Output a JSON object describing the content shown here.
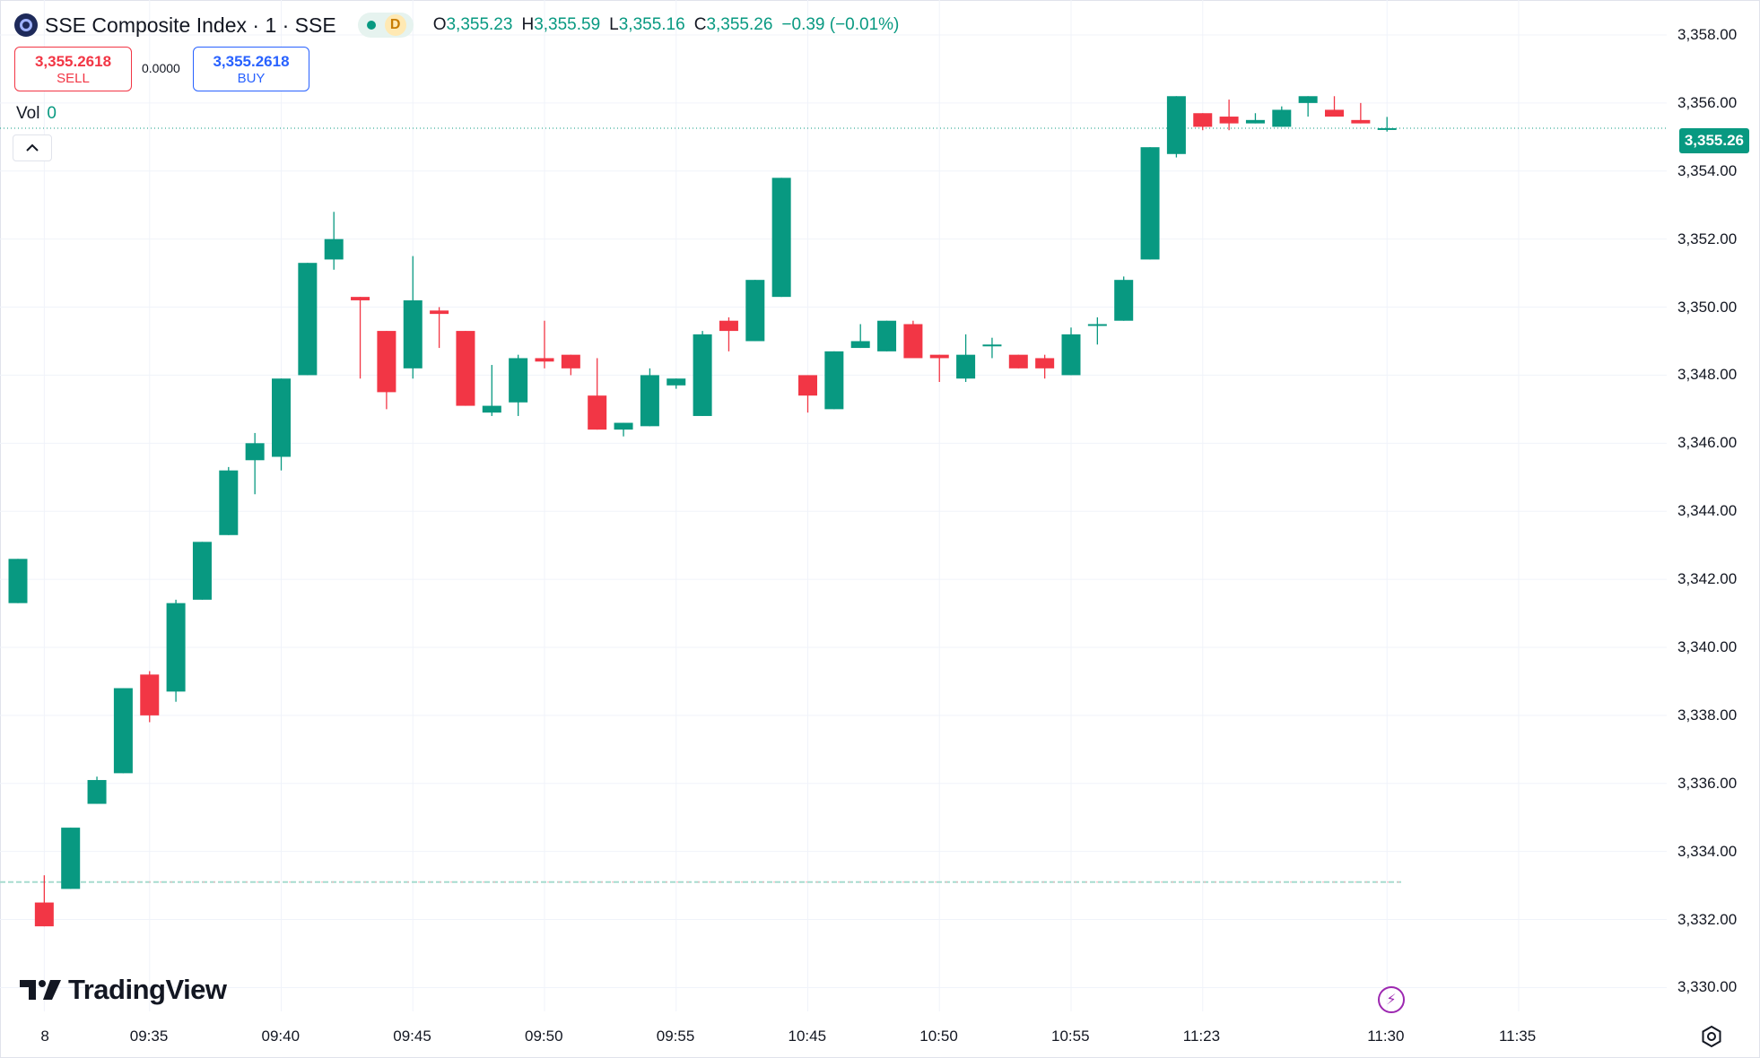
{
  "header": {
    "symbol_title": "SSE Composite Index · 1 · SSE",
    "status_letter": "D",
    "ohlc": {
      "o_key": "O",
      "o_val": "3,355.23",
      "h_key": "H",
      "h_val": "3,355.59",
      "l_key": "L",
      "l_val": "3,355.16",
      "c_key": "C",
      "c_val": "3,355.26",
      "change": "−0.39 (−0.01%)"
    }
  },
  "trade": {
    "sell_price": "3,355.2618",
    "sell_label": "SELL",
    "spread": "0.0000",
    "buy_price": "3,355.2618",
    "buy_label": "BUY"
  },
  "volume": {
    "label": "Vol",
    "value": "0"
  },
  "last_price_tag": "3,355.26",
  "brand": "TradingView",
  "colors": {
    "up": "#089981",
    "down": "#f23645",
    "buy": "#2962ff",
    "grid": "#f0f3fa"
  },
  "icons": [
    "chevron-up-icon",
    "lightning-icon",
    "settings-icon",
    "tradingview-logo-icon",
    "sse-logo-icon"
  ],
  "chart_data": {
    "type": "candlestick",
    "price_axis": [
      "3,358.00",
      "3,356.00",
      "3,354.00",
      "3,352.00",
      "3,350.00",
      "3,348.00",
      "3,346.00",
      "3,344.00",
      "3,342.00",
      "3,340.00",
      "3,338.00",
      "3,336.00",
      "3,334.00",
      "3,332.00",
      "3,330.00"
    ],
    "time_axis": [
      "8",
      "09:35",
      "09:40",
      "09:45",
      "09:50",
      "09:55",
      "10:45",
      "10:50",
      "10:55",
      "11:23",
      "11:30",
      "11:35"
    ],
    "ylim": [
      3329.3,
      3358.5
    ],
    "last_price": 3355.26,
    "baseline_price": 3333.1,
    "candles": [
      [
        3341.3,
        3342.6,
        3341.3,
        3342.6
      ],
      [
        3332.5,
        3333.3,
        3331.8,
        3331.8
      ],
      [
        3332.9,
        3334.7,
        3332.9,
        3334.7
      ],
      [
        3335.4,
        3336.2,
        3335.4,
        3336.1
      ],
      [
        3336.3,
        3338.8,
        3336.3,
        3338.8
      ],
      [
        3339.2,
        3339.3,
        3337.8,
        3338.0
      ],
      [
        3338.7,
        3341.4,
        3338.4,
        3341.3
      ],
      [
        3341.4,
        3343.1,
        3341.4,
        3343.1
      ],
      [
        3343.3,
        3345.3,
        3343.3,
        3345.2
      ],
      [
        3345.5,
        3346.3,
        3344.5,
        3346.0
      ],
      [
        3345.6,
        3347.9,
        3345.2,
        3347.9
      ],
      [
        3348.0,
        3351.3,
        3348.0,
        3351.3
      ],
      [
        3351.4,
        3352.8,
        3351.1,
        3352.0
      ],
      [
        3350.3,
        3350.3,
        3347.9,
        3350.2
      ],
      [
        3349.3,
        3349.3,
        3347.0,
        3347.5
      ],
      [
        3348.2,
        3351.5,
        3347.9,
        3350.2
      ],
      [
        3349.9,
        3350.0,
        3348.8,
        3349.8
      ],
      [
        3349.3,
        3349.3,
        3347.1,
        3347.1
      ],
      [
        3346.9,
        3348.3,
        3346.8,
        3347.1
      ],
      [
        3347.2,
        3348.6,
        3346.8,
        3348.5
      ],
      [
        3348.5,
        3349.6,
        3348.2,
        3348.4
      ],
      [
        3348.6,
        3348.6,
        3348.0,
        3348.2
      ],
      [
        3347.4,
        3348.5,
        3346.4,
        3346.4
      ],
      [
        3346.4,
        3346.6,
        3346.2,
        3346.6
      ],
      [
        3346.5,
        3348.2,
        3346.5,
        3348.0
      ],
      [
        3347.7,
        3347.9,
        3347.6,
        3347.9
      ],
      [
        3346.8,
        3349.3,
        3346.8,
        3349.2
      ],
      [
        3349.6,
        3349.7,
        3348.7,
        3349.3
      ],
      [
        3349.0,
        3350.8,
        3349.0,
        3350.8
      ],
      [
        3350.3,
        3353.8,
        3350.3,
        3353.8
      ],
      [
        3348.0,
        3348.0,
        3346.9,
        3347.4
      ],
      [
        3347.0,
        3348.7,
        3347.0,
        3348.7
      ],
      [
        3348.8,
        3349.5,
        3348.8,
        3349.0
      ],
      [
        3348.7,
        3349.6,
        3348.7,
        3349.6
      ],
      [
        3349.5,
        3349.6,
        3348.6,
        3348.5
      ],
      [
        3348.6,
        3348.6,
        3347.8,
        3348.5
      ],
      [
        3347.9,
        3349.2,
        3347.8,
        3348.6
      ],
      [
        3348.9,
        3349.1,
        3348.5,
        3348.9
      ],
      [
        3348.6,
        3348.6,
        3348.2,
        3348.2
      ],
      [
        3348.5,
        3348.6,
        3347.9,
        3348.2
      ],
      [
        3348.0,
        3349.4,
        3348.0,
        3349.2
      ],
      [
        3349.5,
        3349.7,
        3348.9,
        3349.5
      ],
      [
        3349.6,
        3350.9,
        3349.6,
        3350.8
      ],
      [
        3351.4,
        3354.7,
        3351.4,
        3354.7
      ],
      [
        3354.5,
        3356.2,
        3354.4,
        3356.2
      ],
      [
        3355.7,
        3355.7,
        3355.2,
        3355.3
      ],
      [
        3355.6,
        3356.1,
        3355.2,
        3355.4
      ],
      [
        3355.4,
        3355.7,
        3355.4,
        3355.5
      ],
      [
        3355.3,
        3355.9,
        3355.3,
        3355.8
      ],
      [
        3356.0,
        3356.2,
        3355.6,
        3356.2
      ],
      [
        3355.8,
        3356.2,
        3355.6,
        3355.6
      ],
      [
        3355.5,
        3356.0,
        3355.4,
        3355.4
      ],
      [
        3355.23,
        3355.59,
        3355.16,
        3355.26
      ]
    ]
  }
}
